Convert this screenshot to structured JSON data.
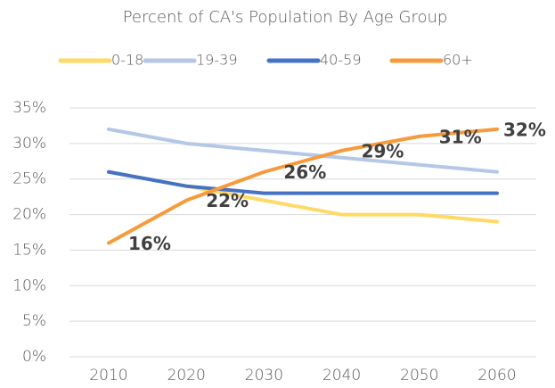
{
  "chart_data": {
    "type": "line",
    "title": "Percent of CA's Population By Age Group",
    "categories": [
      "2010",
      "2020",
      "2030",
      "2040",
      "2050",
      "2060"
    ],
    "series": [
      {
        "name": "0-18",
        "color": "#ffd966",
        "values": [
          26,
          24,
          22,
          20,
          20,
          19
        ]
      },
      {
        "name": "19-39",
        "color": "#b4c7e7",
        "values": [
          32,
          30,
          29,
          28,
          27,
          26
        ]
      },
      {
        "name": "40-59",
        "color": "#4472c4",
        "values": [
          26,
          24,
          23,
          23,
          23,
          23
        ]
      },
      {
        "name": "60+",
        "color": "#f79a3c",
        "values": [
          16,
          22,
          26,
          29,
          31,
          32
        ],
        "value_labels": [
          "16%",
          "22%",
          "26%",
          "29%",
          "31%",
          "32%"
        ]
      }
    ],
    "ylim": [
      0,
      35
    ],
    "yticks": [
      {
        "value": 0,
        "label": "0%"
      },
      {
        "value": 5,
        "label": "5%"
      },
      {
        "value": 10,
        "label": "10%"
      },
      {
        "value": 15,
        "label": "15%"
      },
      {
        "value": 20,
        "label": "20%"
      },
      {
        "value": 25,
        "label": "25%"
      },
      {
        "value": 30,
        "label": "30%"
      },
      {
        "value": 35,
        "label": "35%"
      }
    ],
    "grid": true,
    "legend": "top"
  }
}
